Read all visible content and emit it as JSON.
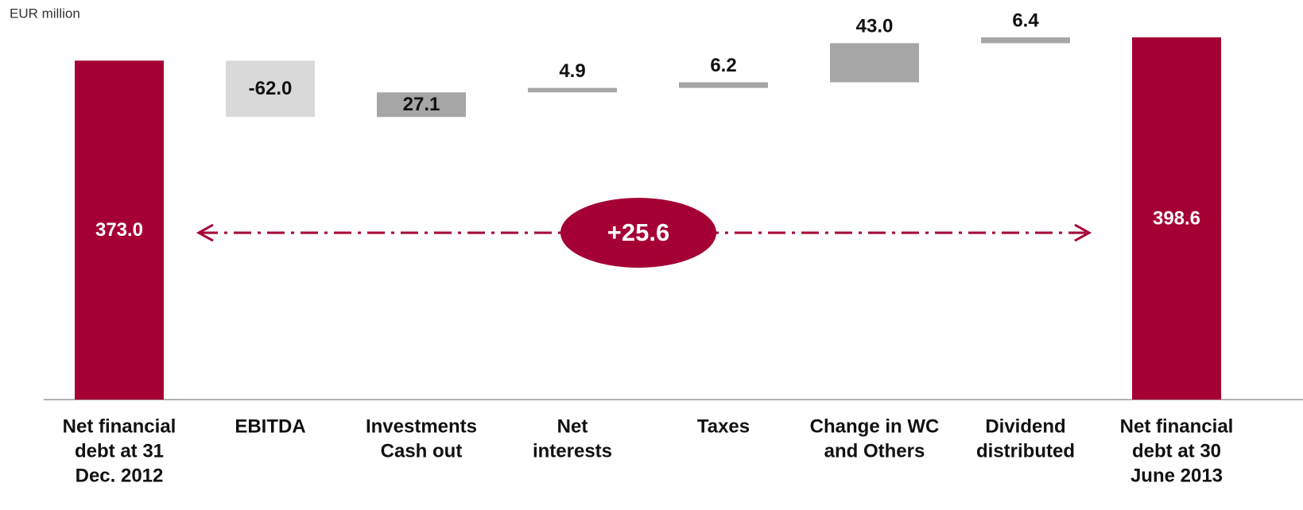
{
  "chart_data": {
    "type": "waterfall",
    "unit_label": "EUR million",
    "annotation": "+25.6",
    "categories": [
      [
        "Net financial",
        "debt at 31",
        "Dec. 2012"
      ],
      [
        "EBITDA"
      ],
      [
        "Investments",
        "Cash out"
      ],
      [
        "Net",
        "interests"
      ],
      [
        "Taxes"
      ],
      [
        "Change in WC",
        "and Others"
      ],
      [
        "Dividend",
        "distributed"
      ],
      [
        "Net financial",
        "debt at 30",
        "June 2013"
      ]
    ],
    "values": [
      373.0,
      -62.0,
      27.1,
      4.9,
      6.2,
      43.0,
      6.4,
      398.6
    ],
    "value_labels": [
      "373.0",
      "-62.0",
      "27.1",
      "4.9",
      "6.2",
      "43.0",
      "6.4",
      "398.6"
    ],
    "colors": {
      "total": "#a50034",
      "decrease": "#d9d9d9",
      "increase": "#a6a6a6"
    },
    "ylim": [
      0,
      410
    ]
  }
}
